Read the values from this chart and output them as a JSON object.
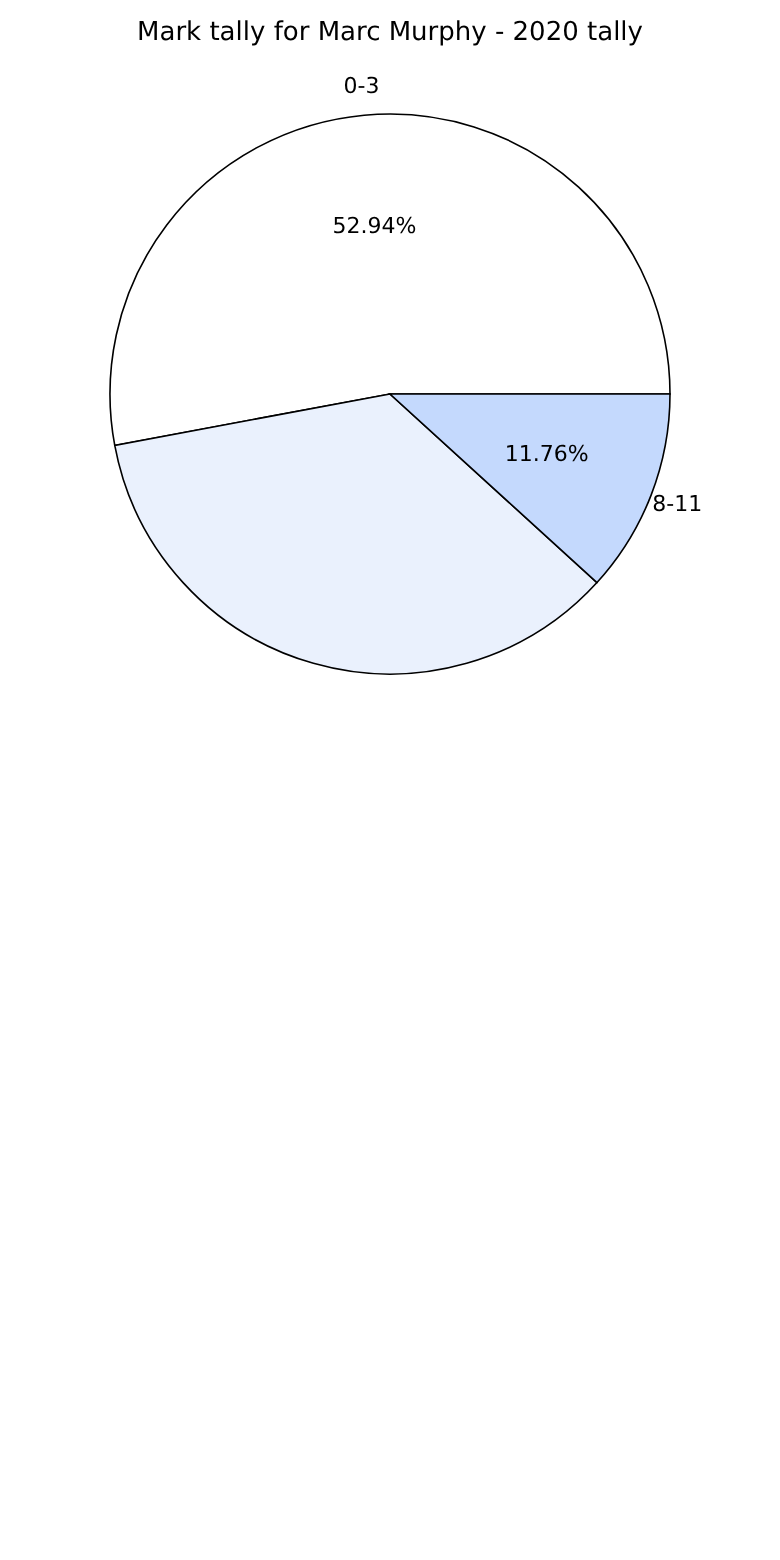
{
  "chart_data": {
    "type": "pie",
    "title": "Mark tally for Marc Murphy - 2020 tally",
    "categories": [
      "0-3",
      null,
      "8-11"
    ],
    "values": [
      52.94,
      35.3,
      11.76
    ],
    "colors": [
      "#ffffff",
      "#eaf1fd",
      "#c4d9fd"
    ],
    "value_labels": [
      "52.94%",
      null,
      "11.76%"
    ],
    "legend": false
  }
}
